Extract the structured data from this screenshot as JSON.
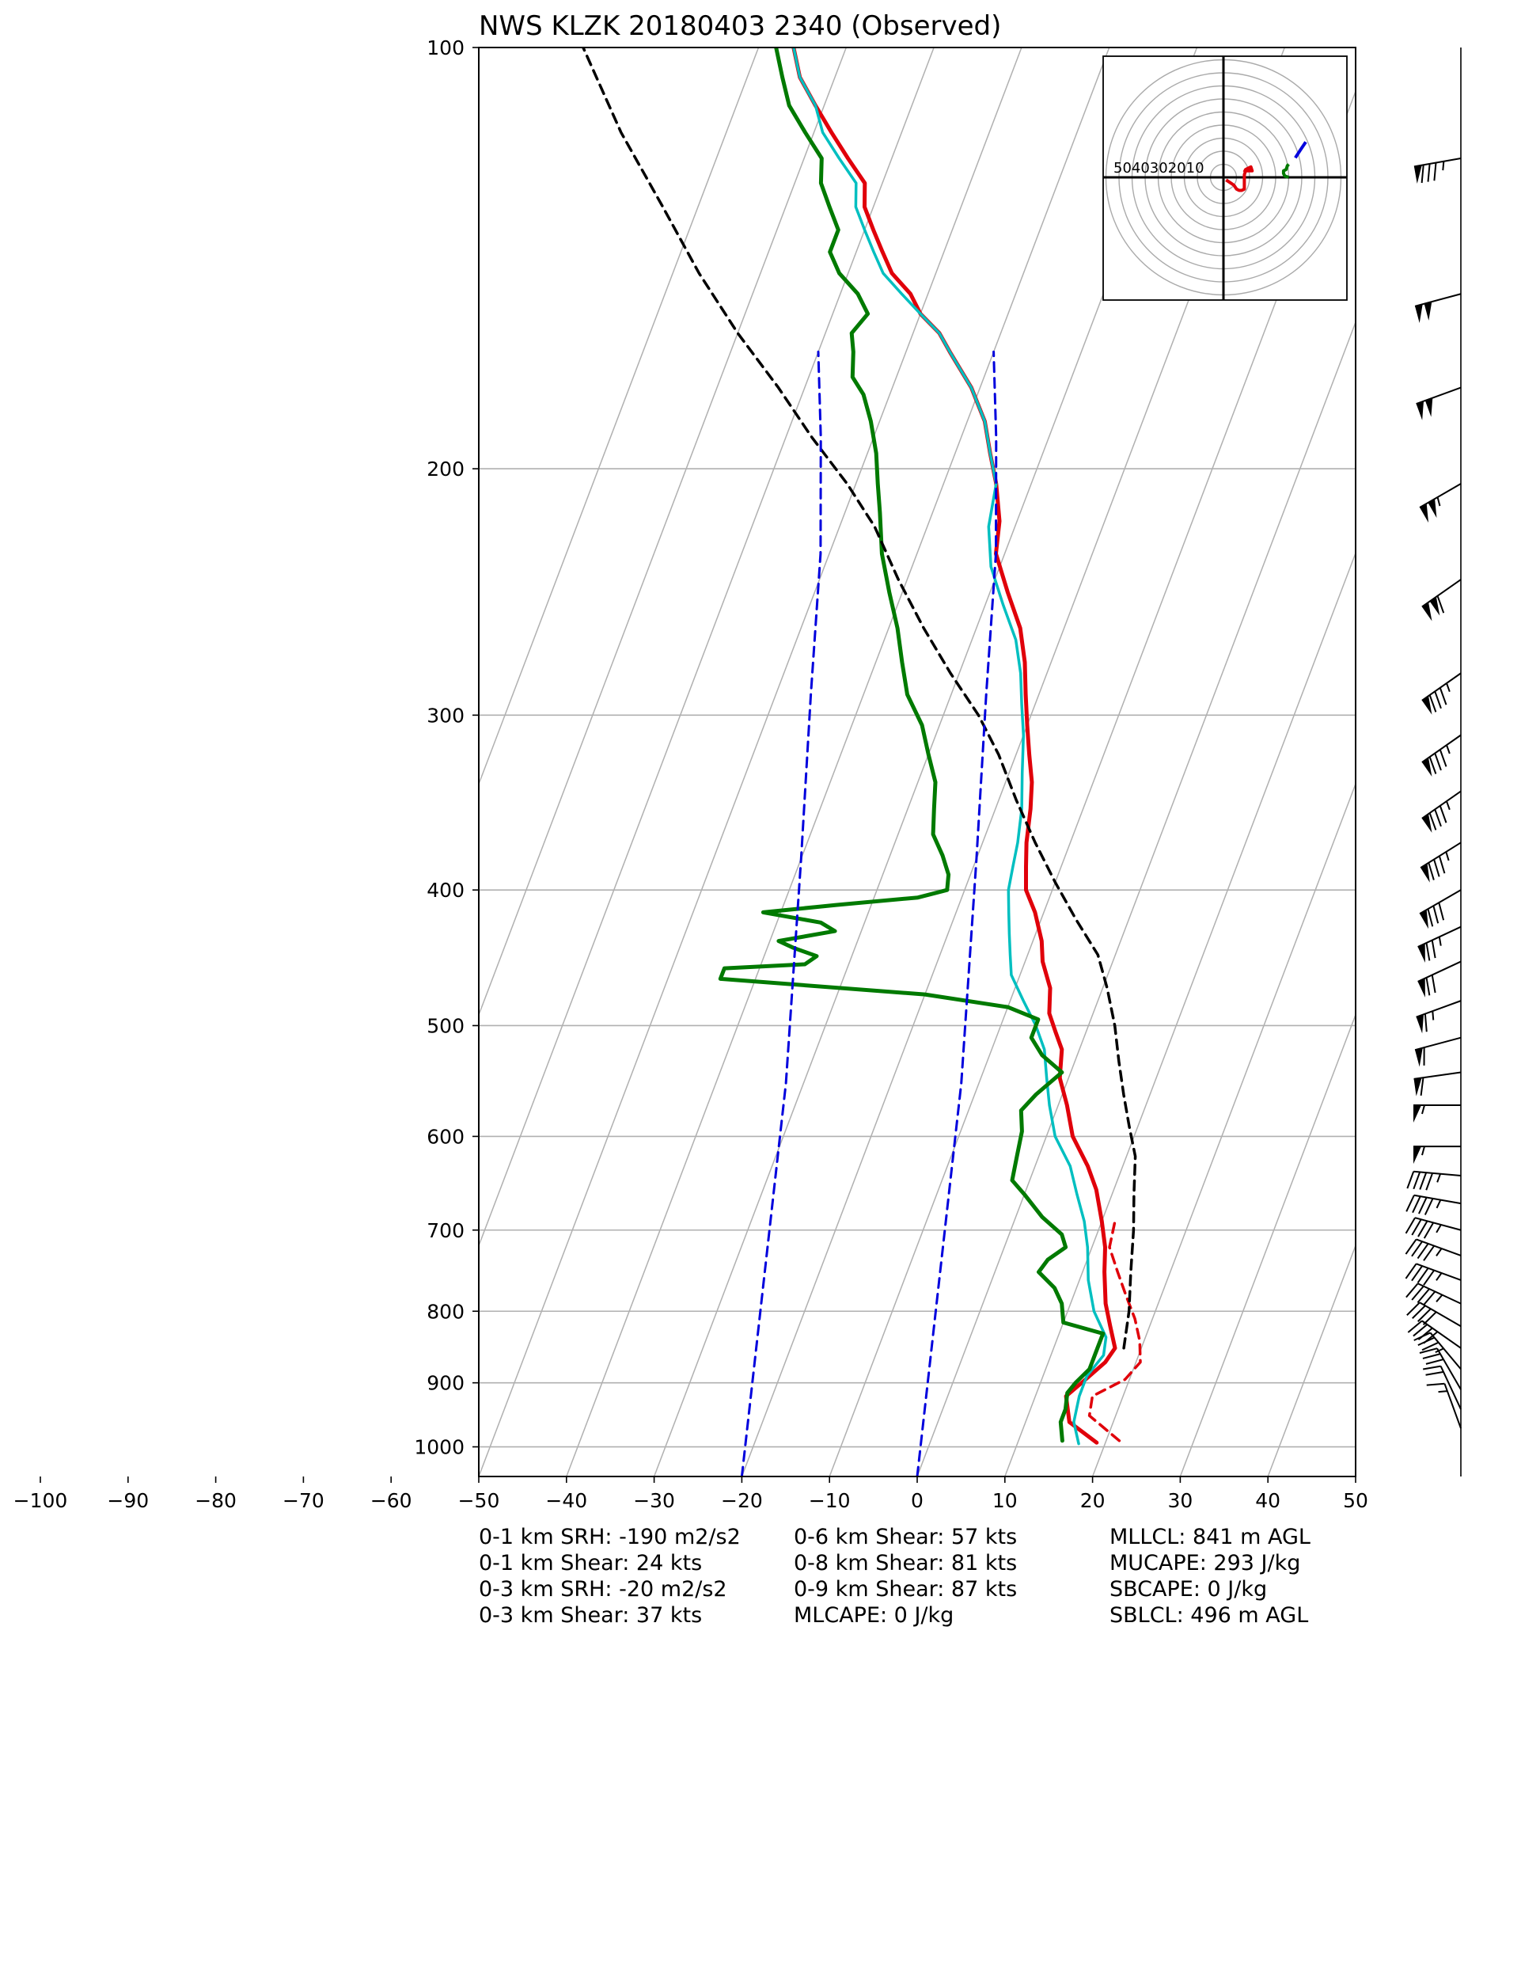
{
  "chart_data": {
    "type": "line",
    "title": "NWS KLZK 20180403 2340   (Observed)",
    "xlabel": "",
    "ylabel": "",
    "xlim": [
      -100,
      50
    ],
    "plot_xlim": [
      -50,
      50
    ],
    "ylim": [
      1050,
      100
    ],
    "y_scale": "log",
    "x_ticks": [
      -100,
      -90,
      -80,
      -70,
      -60,
      -50,
      -40,
      -30,
      -20,
      -10,
      0,
      10,
      20,
      30,
      40,
      50
    ],
    "y_ticks": [
      100,
      200,
      300,
      400,
      500,
      600,
      700,
      800,
      900,
      1000
    ],
    "grid": true,
    "skew_isotherms": [
      -80,
      -70,
      -60,
      -50,
      -40,
      -30,
      -20,
      -10,
      0,
      10,
      20,
      30,
      40
    ],
    "colors": {
      "temperature": "#e0000a",
      "dewpoint": "#007a00",
      "virtual_temperature": "#00bfc0",
      "parcel": "#000000",
      "reference_dashed": "#0000dd",
      "grid": "#b0b0b0"
    },
    "series": [
      {
        "style": "red-solid",
        "points": [
          [
            19,
            993
          ],
          [
            15,
            960
          ],
          [
            13.5,
            920
          ],
          [
            15,
            895
          ],
          [
            16.5,
            870
          ],
          [
            17,
            850
          ],
          [
            15.5,
            820
          ],
          [
            14,
            790
          ],
          [
            12.5,
            750
          ],
          [
            11.5,
            720
          ],
          [
            10,
            690
          ],
          [
            8,
            655
          ],
          [
            6,
            630
          ],
          [
            3,
            600
          ],
          [
            1,
            570
          ],
          [
            -1,
            545
          ],
          [
            -2,
            520
          ],
          [
            -3.5,
            505
          ],
          [
            -5,
            490
          ],
          [
            -6,
            470
          ],
          [
            -8,
            450
          ],
          [
            -9,
            435
          ],
          [
            -11,
            415
          ],
          [
            -13,
            400
          ],
          [
            -14,
            385
          ],
          [
            -15,
            370
          ],
          [
            -16,
            350
          ],
          [
            -17,
            335
          ],
          [
            -18.5,
            320
          ],
          [
            -20,
            305
          ],
          [
            -21.5,
            290
          ],
          [
            -23,
            275
          ],
          [
            -25,
            260
          ],
          [
            -28,
            245
          ],
          [
            -31,
            230
          ],
          [
            -32,
            218
          ],
          [
            -34,
            205
          ],
          [
            -36,
            195
          ],
          [
            -38,
            185
          ],
          [
            -41,
            175
          ],
          [
            -45,
            165
          ],
          [
            -47,
            160
          ],
          [
            -50,
            155
          ],
          [
            -52,
            150
          ],
          [
            -55,
            145
          ],
          [
            -57,
            140
          ],
          [
            -59,
            135
          ],
          [
            -61,
            130
          ],
          [
            -62,
            125
          ],
          [
            -65,
            120
          ],
          [
            -68,
            115
          ],
          [
            -71,
            110
          ],
          [
            -74,
            105
          ],
          [
            -76,
            100
          ]
        ]
      },
      {
        "style": "red-dashed",
        "points": [
          [
            21.5,
            990
          ],
          [
            17,
            950
          ],
          [
            16.5,
            920
          ],
          [
            19.5,
            895
          ],
          [
            20.5,
            870
          ],
          [
            19.5,
            840
          ],
          [
            18,
            810
          ],
          [
            16,
            780
          ],
          [
            14,
            750
          ],
          [
            12,
            720
          ],
          [
            11.5,
            690
          ]
        ]
      },
      {
        "style": "cyan",
        "points": [
          [
            17,
            995
          ],
          [
            15.5,
            960
          ],
          [
            15,
            920
          ],
          [
            15,
            890
          ],
          [
            16,
            860
          ],
          [
            15.5,
            835
          ],
          [
            13,
            800
          ],
          [
            11,
            760
          ],
          [
            9.5,
            720
          ],
          [
            8,
            690
          ],
          [
            6,
            660
          ],
          [
            4,
            630
          ],
          [
            1,
            600
          ],
          [
            -1,
            570
          ],
          [
            -2.5,
            545
          ],
          [
            -4,
            520
          ],
          [
            -6,
            500
          ],
          [
            -8.5,
            480
          ],
          [
            -11,
            460
          ],
          [
            -12,
            445
          ],
          [
            -13,
            430
          ],
          [
            -14,
            415
          ],
          [
            -15,
            400
          ],
          [
            -15.5,
            385
          ],
          [
            -16,
            370
          ],
          [
            -17,
            350
          ],
          [
            -18.5,
            330
          ],
          [
            -20,
            310
          ],
          [
            -21.5,
            295
          ],
          [
            -23,
            280
          ],
          [
            -25,
            265
          ],
          [
            -28,
            250
          ],
          [
            -31,
            235
          ],
          [
            -33,
            220
          ],
          [
            -34,
            205
          ],
          [
            -36,
            195
          ],
          [
            -38,
            185
          ],
          [
            -41,
            175
          ],
          [
            -45,
            165
          ],
          [
            -47,
            160
          ],
          [
            -50,
            155
          ],
          [
            -53,
            150
          ],
          [
            -56,
            145
          ],
          [
            -58,
            140
          ],
          [
            -60,
            135
          ],
          [
            -62,
            130
          ],
          [
            -63,
            125
          ],
          [
            -66,
            120
          ],
          [
            -69,
            115
          ],
          [
            -71,
            110
          ],
          [
            -74,
            105
          ],
          [
            -76,
            100
          ]
        ]
      },
      {
        "style": "green",
        "points": [
          [
            15,
            990
          ],
          [
            14,
            960
          ],
          [
            14,
            940
          ],
          [
            13.5,
            915
          ],
          [
            14,
            900
          ],
          [
            15,
            880
          ],
          [
            15,
            850
          ],
          [
            15,
            830
          ],
          [
            10,
            815
          ],
          [
            9,
            790
          ],
          [
            7.5,
            770
          ],
          [
            5,
            750
          ],
          [
            5.5,
            735
          ],
          [
            7,
            720
          ],
          [
            6,
            705
          ],
          [
            3,
            685
          ],
          [
            0,
            660
          ],
          [
            -2,
            645
          ],
          [
            -2.5,
            620
          ],
          [
            -3,
            595
          ],
          [
            -4,
            575
          ],
          [
            -3,
            560
          ],
          [
            -1,
            540
          ],
          [
            -4,
            525
          ],
          [
            -6,
            510
          ],
          [
            -6,
            495
          ],
          [
            -10,
            485
          ],
          [
            -20,
            475
          ],
          [
            -44,
            463
          ],
          [
            -44,
            455
          ],
          [
            -35,
            452
          ],
          [
            -34,
            446
          ],
          [
            -37,
            440
          ],
          [
            -39,
            435
          ],
          [
            -33,
            428
          ],
          [
            -35,
            422
          ],
          [
            -42,
            415
          ],
          [
            -34,
            410
          ],
          [
            -25,
            405
          ],
          [
            -22,
            400
          ],
          [
            -22.5,
            390
          ],
          [
            -24,
            378
          ],
          [
            -26,
            365
          ],
          [
            -27,
            350
          ],
          [
            -28,
            335
          ],
          [
            -30,
            320
          ],
          [
            -32,
            305
          ],
          [
            -35,
            290
          ],
          [
            -37,
            275
          ],
          [
            -39,
            260
          ],
          [
            -41.5,
            245
          ],
          [
            -44,
            230
          ],
          [
            -46,
            215
          ],
          [
            -47.5,
            205
          ],
          [
            -49,
            195
          ],
          [
            -51,
            185
          ],
          [
            -53,
            177
          ],
          [
            -55,
            172
          ],
          [
            -56,
            165
          ],
          [
            -57,
            160
          ],
          [
            -56,
            155
          ],
          [
            -58,
            150
          ],
          [
            -61,
            145
          ],
          [
            -63,
            140
          ],
          [
            -63,
            135
          ],
          [
            -65,
            130
          ],
          [
            -67,
            125
          ],
          [
            -68,
            120
          ],
          [
            -71,
            115
          ],
          [
            -74,
            110
          ],
          [
            -76,
            105
          ],
          [
            -78,
            100
          ]
        ]
      },
      {
        "style": "parcel-black-dashed",
        "points": [
          [
            18,
            850
          ],
          [
            17,
            800
          ],
          [
            15.5,
            750
          ],
          [
            14,
            700
          ],
          [
            12.5,
            660
          ],
          [
            11,
            620
          ],
          [
            9,
            590
          ],
          [
            7,
            560
          ],
          [
            5,
            530
          ],
          [
            3,
            500
          ],
          [
            0.5,
            470
          ],
          [
            -2,
            445
          ],
          [
            -6,
            420
          ],
          [
            -10,
            395
          ],
          [
            -14,
            370
          ],
          [
            -18,
            345
          ],
          [
            -22,
            320
          ],
          [
            -26,
            300
          ],
          [
            -31,
            280
          ],
          [
            -36,
            260
          ],
          [
            -41,
            240
          ],
          [
            -46,
            220
          ],
          [
            -51,
            205
          ],
          [
            -57,
            190
          ],
          [
            -63,
            175
          ],
          [
            -70,
            160
          ],
          [
            -77,
            145
          ],
          [
            -84,
            130
          ],
          [
            -92,
            115
          ],
          [
            -100,
            100
          ]
        ]
      },
      {
        "style": "blue-dashed",
        "points": [
          [
            -20,
            1050
          ],
          [
            -32,
            550
          ],
          [
            -40,
            380
          ],
          [
            -46,
            290
          ],
          [
            -51,
            230
          ],
          [
            -56,
            190
          ],
          [
            -60,
            165
          ]
        ]
      },
      {
        "style": "blue-dashed",
        "points": [
          [
            0,
            1050
          ],
          [
            -12,
            550
          ],
          [
            -20,
            380
          ],
          [
            -26,
            290
          ],
          [
            -31,
            230
          ],
          [
            -36,
            190
          ],
          [
            -40,
            165
          ]
        ]
      }
    ],
    "hodograph": {
      "ring_labels": [
        "50",
        "40",
        "30",
        "20",
        "10"
      ],
      "ring_step_kts": 10,
      "max_kts": 60,
      "red_trace": [
        [
          2,
          -2
        ],
        [
          5,
          -4
        ],
        [
          8,
          -6
        ],
        [
          10,
          -9
        ],
        [
          12,
          -10
        ],
        [
          14,
          -10
        ],
        [
          16,
          -9
        ],
        [
          16,
          -7
        ],
        [
          16,
          -3
        ],
        [
          16,
          2
        ],
        [
          17,
          5
        ],
        [
          20,
          5
        ],
        [
          22,
          5
        ],
        [
          21,
          8
        ],
        [
          19,
          7
        ],
        [
          17,
          6
        ],
        [
          16,
          4
        ]
      ],
      "green_trace": [
        [
          50,
          0
        ],
        [
          47,
          1
        ],
        [
          46,
          3
        ],
        [
          46,
          5
        ],
        [
          48,
          6
        ],
        [
          49,
          9
        ],
        [
          50,
          10
        ]
      ],
      "blue_trace": [
        [
          55,
          15
        ],
        [
          59,
          21
        ],
        [
          63,
          27
        ]
      ]
    },
    "wind_barbs": [
      {
        "p": 120,
        "dir": 260,
        "spd": 85
      },
      {
        "p": 150,
        "dir": 255,
        "spd": 100
      },
      {
        "p": 175,
        "dir": 250,
        "spd": 100
      },
      {
        "p": 205,
        "dir": 240,
        "spd": 105
      },
      {
        "p": 240,
        "dir": 235,
        "spd": 110
      },
      {
        "p": 280,
        "dir": 235,
        "spd": 85
      },
      {
        "p": 310,
        "dir": 235,
        "spd": 85
      },
      {
        "p": 340,
        "dir": 235,
        "spd": 85
      },
      {
        "p": 370,
        "dir": 238,
        "spd": 85
      },
      {
        "p": 400,
        "dir": 240,
        "spd": 80
      },
      {
        "p": 425,
        "dir": 245,
        "spd": 75
      },
      {
        "p": 450,
        "dir": 245,
        "spd": 70
      },
      {
        "p": 480,
        "dir": 250,
        "spd": 65
      },
      {
        "p": 510,
        "dir": 255,
        "spd": 60
      },
      {
        "p": 540,
        "dir": 262,
        "spd": 60
      },
      {
        "p": 570,
        "dir": 270,
        "spd": 55
      },
      {
        "p": 610,
        "dir": 270,
        "spd": 55
      },
      {
        "p": 640,
        "dir": 275,
        "spd": 45
      },
      {
        "p": 670,
        "dir": 280,
        "spd": 45
      },
      {
        "p": 700,
        "dir": 285,
        "spd": 45
      },
      {
        "p": 730,
        "dir": 290,
        "spd": 45
      },
      {
        "p": 760,
        "dir": 290,
        "spd": 45
      },
      {
        "p": 790,
        "dir": 295,
        "spd": 45
      },
      {
        "p": 820,
        "dir": 300,
        "spd": 40
      },
      {
        "p": 850,
        "dir": 305,
        "spd": 40
      },
      {
        "p": 880,
        "dir": 320,
        "spd": 35
      },
      {
        "p": 910,
        "dir": 330,
        "spd": 30
      },
      {
        "p": 940,
        "dir": 335,
        "spd": 20
      },
      {
        "p": 970,
        "dir": 340,
        "spd": 15
      }
    ]
  },
  "stats": {
    "col1": [
      "0-1 km SRH: -190 m2/s2",
      "0-1 km Shear: 24 kts",
      "0-3 km SRH: -20 m2/s2",
      "0-3 km Shear: 37 kts"
    ],
    "col2": [
      "0-6 km Shear: 57 kts",
      "0-8 km Shear: 81 kts",
      "0-9 km Shear: 87 kts",
      "MLCAPE: 0 J/kg"
    ],
    "col3": [
      "MLLCL: 841 m AGL",
      "MUCAPE: 293 J/kg",
      "SBCAPE: 0 J/kg",
      "SBLCL: 496 m AGL"
    ]
  }
}
